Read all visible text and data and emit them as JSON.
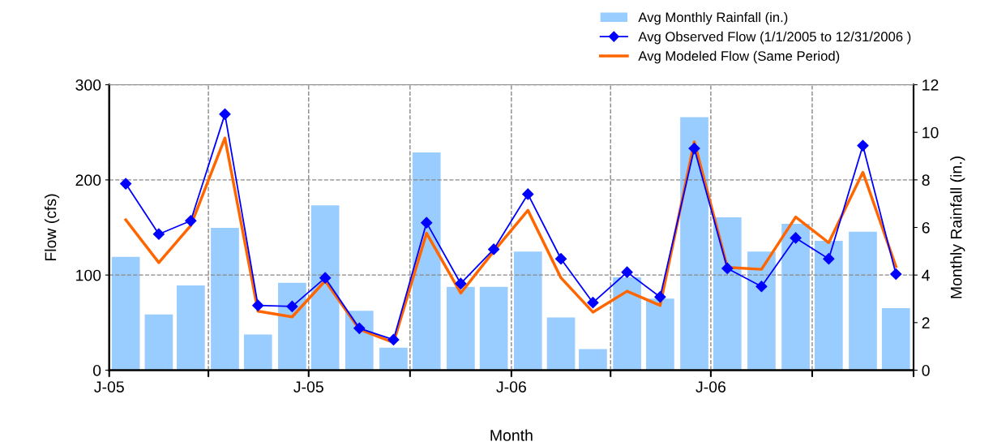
{
  "chart_data": {
    "type": "bar",
    "xlabel": "Month",
    "ylabel": "Flow (cfs)",
    "y2label": "Monthly Rainfall (in.)",
    "x": [
      "2005-01-16",
      "2005-02-15",
      "2005-03-16",
      "2005-04-16",
      "2005-05-16",
      "2005-06-16",
      "2005-07-16",
      "2005-08-16",
      "2005-09-16",
      "2005-10-16",
      "2005-11-16",
      "2005-12-16",
      "2006-01-16",
      "2006-02-15",
      "2006-03-16",
      "2006-04-16",
      "2006-05-16",
      "2006-06-16",
      "2006-07-16",
      "2006-08-16",
      "2006-09-16",
      "2006-10-16",
      "2006-11-16",
      "2006-12-16"
    ],
    "xlim": [
      "2005-01-01",
      "2007-01-01"
    ],
    "xticks": [
      {
        "value": "2005-01-01",
        "label": "J-05"
      },
      {
        "value": "2005-04-01",
        "label": null
      },
      {
        "value": "2005-07-01",
        "label": "J-05"
      },
      {
        "value": "2005-10-01",
        "label": null
      },
      {
        "value": "2006-01-01",
        "label": "J-06"
      },
      {
        "value": "2006-04-01",
        "label": null
      },
      {
        "value": "2006-07-01",
        "label": "J-06"
      },
      {
        "value": "2006-10-01",
        "label": null
      },
      {
        "value": "2007-01-01",
        "label": null
      }
    ],
    "series": [
      {
        "name": "Avg Monthly Rainfall (in.)",
        "axis": "y2",
        "color": "#99ccff",
        "values": [
          4.76,
          2.34,
          3.56,
          5.98,
          1.5,
          3.67,
          6.93,
          2.5,
          0.95,
          9.15,
          3.5,
          3.5,
          4.99,
          2.22,
          0.89,
          3.9,
          3.01,
          10.64,
          6.43,
          4.99,
          6.15,
          5.44,
          5.82,
          2.61
        ]
      },
      {
        "name": "Avg Observed Flow (1/1/2005 to 12/31/2006 )",
        "type": "line",
        "color": "#0000ff",
        "marker": "diamond",
        "values": [
          196,
          143,
          157,
          269,
          68,
          67,
          97,
          44,
          32,
          155,
          91,
          127,
          185,
          117,
          71,
          103,
          77,
          233,
          107,
          88,
          139,
          117,
          236,
          101
        ]
      },
      {
        "name": "Avg Modeled Flow (Same Period)",
        "type": "line",
        "color": "#ff6600",
        "values": [
          158,
          113,
          152,
          244,
          62,
          56,
          94,
          43,
          29,
          144,
          81,
          125,
          168,
          97,
          61,
          83,
          68,
          240,
          108,
          106,
          161,
          134,
          208,
          109
        ]
      }
    ],
    "ylim": [
      0,
      300
    ],
    "yticks": [
      0,
      100,
      200,
      300
    ],
    "y2lim": [
      0,
      12
    ],
    "y2ticks": [
      0,
      2,
      4,
      6,
      8,
      10,
      12
    ],
    "grid": true,
    "legend": "top right"
  }
}
